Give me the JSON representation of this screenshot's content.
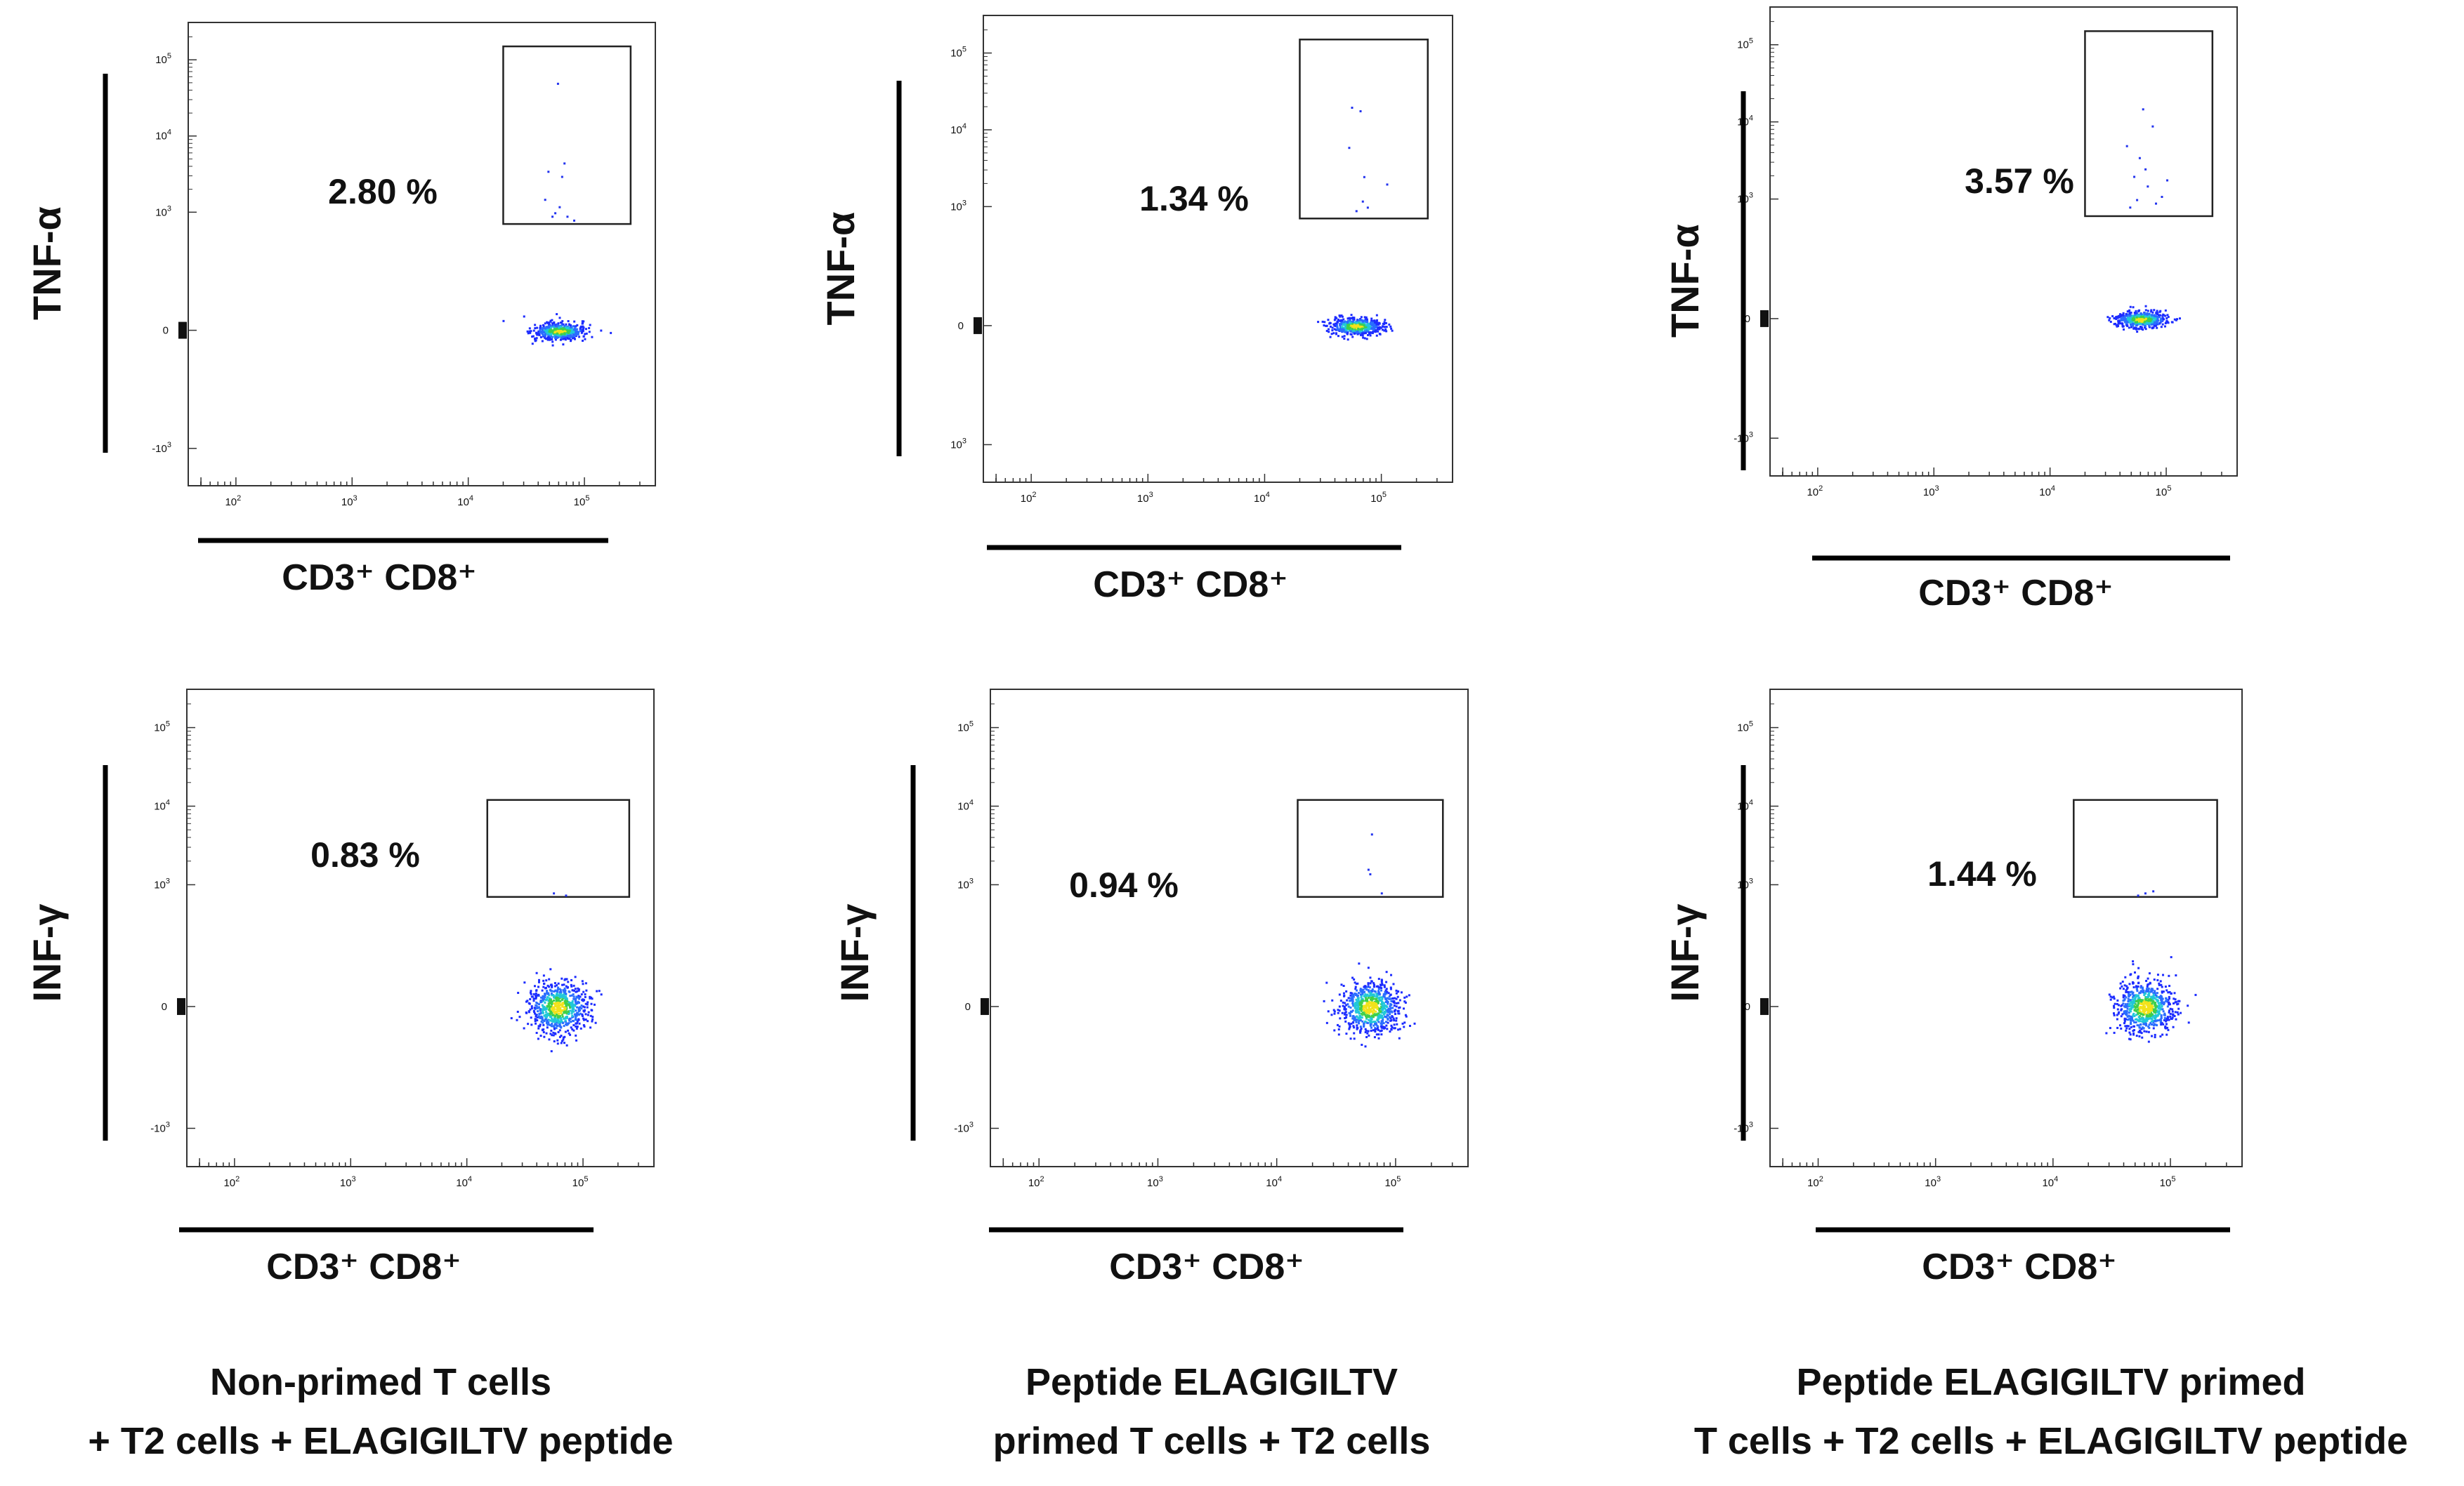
{
  "figure": {
    "panels": [
      {
        "row": "top",
        "column": 1,
        "ylabel": "TNF-α",
        "xlabel": "CD3⁺ CD8⁺",
        "percent_label": "2.80 %"
      },
      {
        "row": "top",
        "column": 2,
        "ylabel": "TNF-α",
        "xlabel": "CD3⁺ CD8⁺",
        "percent_label": "1.34 %"
      },
      {
        "row": "top",
        "column": 3,
        "ylabel": "TNF-α",
        "xlabel": "CD3⁺ CD8⁺",
        "percent_label": "3.57 %"
      },
      {
        "row": "bottom",
        "column": 1,
        "ylabel": "INF-γ",
        "xlabel": "CD3⁺ CD8⁺",
        "percent_label": "0.83 %"
      },
      {
        "row": "bottom",
        "column": 2,
        "ylabel": "INF-γ",
        "xlabel": "CD3⁺ CD8⁺",
        "percent_label": "0.94 %"
      },
      {
        "row": "bottom",
        "column": 3,
        "ylabel": "INF-γ",
        "xlabel": "CD3⁺ CD8⁺",
        "percent_label": "1.44 %"
      }
    ],
    "captions": [
      {
        "line1": "Non-primed T cells",
        "line2": "+ T2 cells + ELAGIGILTV peptide"
      },
      {
        "line1": "Peptide ELAGIGILTV",
        "line2": "primed T cells + T2 cells"
      },
      {
        "line1": "Peptide ELAGIGILTV primed",
        "line2": "T cells + T2 cells + ELAGIGILTV peptide"
      }
    ]
  },
  "chart_data": [
    {
      "type": "scatter",
      "subtype": "flow-cytometry-pseudocolor",
      "row": "top",
      "column": 1,
      "ylabel": "TNF-α",
      "xlabel": "CD3⁺ CD8⁺",
      "x_scale": "biexponential",
      "y_scale": "biexponential",
      "x_ticks": [
        "10^2",
        "10^3",
        "10^4",
        "10^5"
      ],
      "y_ticks": [
        "-10^3",
        "0",
        "10^3",
        "10^4",
        "10^5"
      ],
      "gate": {
        "x_range": [
          20000,
          250000
        ],
        "y_range": [
          700,
          150000
        ]
      },
      "gate_percent": 2.8,
      "annotation": "2.80 %",
      "population": {
        "x_center": 60000,
        "y_center": 0
      },
      "positive_events_approx": [
        [
          45000,
          1500
        ],
        [
          60000,
          1200
        ],
        [
          52000,
          900
        ],
        [
          70000,
          900
        ],
        [
          63000,
          3000
        ],
        [
          58000,
          50000
        ],
        [
          66000,
          4500
        ],
        [
          48000,
          3500
        ],
        [
          80000,
          800
        ],
        [
          55000,
          1000
        ]
      ]
    },
    {
      "type": "scatter",
      "subtype": "flow-cytometry-pseudocolor",
      "row": "top",
      "column": 2,
      "ylabel": "TNF-α",
      "xlabel": "CD3⁺ CD8⁺",
      "x_scale": "biexponential",
      "y_scale": "biexponential",
      "x_ticks": [
        "10^2",
        "10^3",
        "10^4",
        "10^5"
      ],
      "y_ticks": [
        "10^3",
        "0",
        "10^3",
        "10^4",
        "10^5"
      ],
      "gate": {
        "x_range": [
          20000,
          250000
        ],
        "y_range": [
          700,
          150000
        ]
      },
      "gate_percent": 1.34,
      "annotation": "1.34 %",
      "population": {
        "x_center": 60000,
        "y_center": 0
      },
      "positive_events_approx": [
        [
          55000,
          20000
        ],
        [
          65000,
          18000
        ],
        [
          52000,
          6000
        ],
        [
          70000,
          2500
        ],
        [
          110000,
          2000
        ],
        [
          68000,
          1200
        ],
        [
          60000,
          900
        ],
        [
          75000,
          1000
        ]
      ]
    },
    {
      "type": "scatter",
      "subtype": "flow-cytometry-pseudocolor",
      "row": "top",
      "column": 3,
      "ylabel": "TNF-α",
      "xlabel": "CD3⁺ CD8⁺",
      "x_scale": "biexponential",
      "y_scale": "biexponential",
      "x_ticks": [
        "10^2",
        "10^3",
        "10^4",
        "10^5"
      ],
      "y_ticks": [
        "-10^3",
        "0",
        "10^3",
        "10^4",
        "10^5"
      ],
      "gate": {
        "x_range": [
          20000,
          250000
        ],
        "y_range": [
          600,
          150000
        ]
      },
      "gate_percent": 3.57,
      "annotation": "3.57 %",
      "population": {
        "x_center": 60000,
        "y_center": 0
      },
      "positive_events_approx": [
        [
          62000,
          15000
        ],
        [
          75000,
          9000
        ],
        [
          45000,
          5000
        ],
        [
          58000,
          3500
        ],
        [
          52000,
          2000
        ],
        [
          68000,
          1500
        ],
        [
          100000,
          1800
        ],
        [
          55000,
          1000
        ],
        [
          80000,
          900
        ],
        [
          48000,
          800
        ],
        [
          65000,
          2500
        ],
        [
          90000,
          1100
        ]
      ]
    },
    {
      "type": "scatter",
      "subtype": "flow-cytometry-pseudocolor",
      "row": "bottom",
      "column": 1,
      "ylabel": "INF-γ",
      "xlabel": "CD3⁺ CD8⁺",
      "x_scale": "biexponential",
      "y_scale": "biexponential",
      "x_ticks": [
        "10^2",
        "10^3",
        "10^4",
        "10^5"
      ],
      "y_ticks": [
        "-10^3",
        "0",
        "10^3",
        "10^4",
        "10^5"
      ],
      "gate": {
        "x_range": [
          15000,
          250000
        ],
        "y_range": [
          700,
          12000
        ]
      },
      "gate_percent": 0.83,
      "annotation": "0.83 %",
      "population": {
        "x_center": 60000,
        "y_center": 0
      },
      "positive_events_approx": [
        [
          55000,
          800
        ],
        [
          70000,
          750
        ]
      ]
    },
    {
      "type": "scatter",
      "subtype": "flow-cytometry-pseudocolor",
      "row": "bottom",
      "column": 2,
      "ylabel": "INF-γ",
      "xlabel": "CD3⁺ CD8⁺",
      "x_scale": "biexponential",
      "y_scale": "biexponential",
      "x_ticks": [
        "10^2",
        "10^3",
        "10^4",
        "10^5"
      ],
      "y_ticks": [
        "-10^3",
        "0",
        "10^3",
        "10^4",
        "10^5"
      ],
      "gate": {
        "x_range": [
          15000,
          250000
        ],
        "y_range": [
          700,
          12000
        ]
      },
      "gate_percent": 0.94,
      "annotation": "0.94 %",
      "population": {
        "x_center": 60000,
        "y_center": 0
      },
      "positive_events_approx": [
        [
          62000,
          4500
        ],
        [
          58000,
          1600
        ],
        [
          60000,
          1400
        ],
        [
          75000,
          800
        ]
      ]
    },
    {
      "type": "scatter",
      "subtype": "flow-cytometry-pseudocolor",
      "row": "bottom",
      "column": 3,
      "ylabel": "INF-γ",
      "xlabel": "CD3⁺ CD8⁺",
      "x_scale": "biexponential",
      "y_scale": "biexponential",
      "x_ticks": [
        "10^2",
        "10^3",
        "10^4",
        "10^5"
      ],
      "y_ticks": [
        "-10^3",
        "0",
        "10^3",
        "10^4",
        "10^5"
      ],
      "gate": {
        "x_range": [
          15000,
          250000
        ],
        "y_range": [
          700,
          12000
        ]
      },
      "gate_percent": 1.44,
      "annotation": "1.44 %",
      "population": {
        "x_center": 60000,
        "y_center": 0
      },
      "positive_events_approx": [
        [
          60000,
          800
        ],
        [
          70000,
          850
        ],
        [
          52000,
          750
        ]
      ]
    }
  ]
}
